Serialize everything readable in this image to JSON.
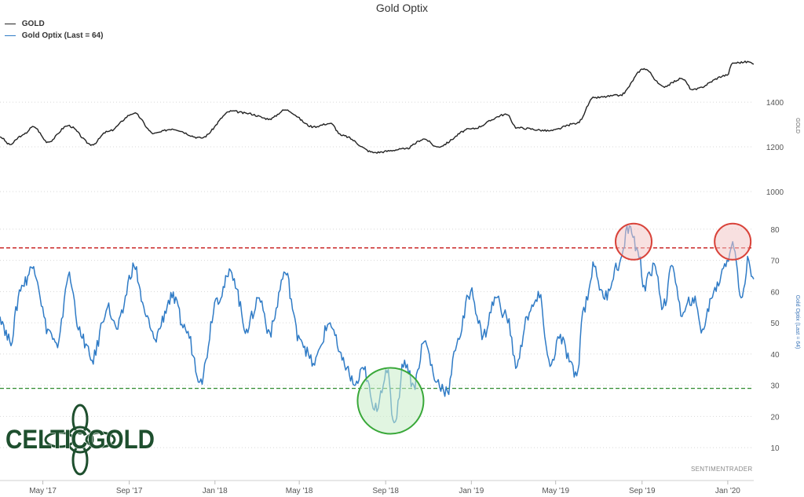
{
  "chart_data": {
    "type": "line",
    "title": "Gold Optix",
    "legend": [
      "GOLD",
      "Gold Optix (Last = 64)"
    ],
    "legend_placement": "top-left",
    "x_tick_labels": [
      "May '17",
      "Sep '17",
      "Jan '18",
      "May '18",
      "Sep '18",
      "Jan '19",
      "May '19",
      "Sep '19",
      "Jan '20"
    ],
    "x_tick_positions": [
      "2017-05-01",
      "2017-09-01",
      "2018-01-01",
      "2018-05-01",
      "2018-09-01",
      "2019-01-01",
      "2019-05-01",
      "2019-09-01",
      "2020-01-01"
    ],
    "x_range": [
      "2017-03-01",
      "2020-02-07"
    ],
    "series": [
      {
        "name": "GOLD",
        "axis": "GOLD",
        "color": "#222222",
        "points": [
          [
            "2017-03-01",
            1245
          ],
          [
            "2017-03-15",
            1210
          ],
          [
            "2017-04-01",
            1250
          ],
          [
            "2017-04-18",
            1290
          ],
          [
            "2017-05-08",
            1222
          ],
          [
            "2017-06-06",
            1295
          ],
          [
            "2017-07-10",
            1210
          ],
          [
            "2017-08-01",
            1268
          ],
          [
            "2017-09-08",
            1350
          ],
          [
            "2017-10-06",
            1260
          ],
          [
            "2017-11-01",
            1280
          ],
          [
            "2017-12-12",
            1240
          ],
          [
            "2018-01-25",
            1360
          ],
          [
            "2018-02-15",
            1350
          ],
          [
            "2018-03-20",
            1325
          ],
          [
            "2018-04-11",
            1365
          ],
          [
            "2018-05-21",
            1290
          ],
          [
            "2018-06-14",
            1305
          ],
          [
            "2018-07-01",
            1250
          ],
          [
            "2018-08-16",
            1175
          ],
          [
            "2018-09-28",
            1190
          ],
          [
            "2018-10-26",
            1235
          ],
          [
            "2018-11-13",
            1200
          ],
          [
            "2018-12-31",
            1280
          ],
          [
            "2019-02-20",
            1345
          ],
          [
            "2019-03-07",
            1285
          ],
          [
            "2019-04-23",
            1272
          ],
          [
            "2019-05-31",
            1305
          ],
          [
            "2019-06-25",
            1420
          ],
          [
            "2019-07-31",
            1430
          ],
          [
            "2019-09-04",
            1550
          ],
          [
            "2019-10-01",
            1470
          ],
          [
            "2019-10-28",
            1505
          ],
          [
            "2019-11-12",
            1455
          ],
          [
            "2019-12-31",
            1520
          ],
          [
            "2020-01-08",
            1575
          ],
          [
            "2020-01-31",
            1580
          ],
          [
            "2020-02-07",
            1570
          ]
        ]
      },
      {
        "name": "Gold Optix (Last = 64)",
        "axis": "Gold Optix (Last = 64)",
        "color": "#2f7bc6",
        "points": [
          [
            "2017-03-01",
            52
          ],
          [
            "2017-03-15",
            44
          ],
          [
            "2017-04-01",
            62
          ],
          [
            "2017-04-18",
            68
          ],
          [
            "2017-05-08",
            48
          ],
          [
            "2017-05-22",
            42
          ],
          [
            "2017-06-06",
            65
          ],
          [
            "2017-06-26",
            45
          ],
          [
            "2017-07-10",
            38
          ],
          [
            "2017-08-01",
            55
          ],
          [
            "2017-08-14",
            48
          ],
          [
            "2017-09-08",
            68
          ],
          [
            "2017-09-25",
            52
          ],
          [
            "2017-10-06",
            45
          ],
          [
            "2017-11-01",
            58
          ],
          [
            "2017-11-20",
            48
          ],
          [
            "2017-12-12",
            32
          ],
          [
            "2018-01-04",
            58
          ],
          [
            "2018-01-25",
            66
          ],
          [
            "2018-02-15",
            48
          ],
          [
            "2018-03-05",
            58
          ],
          [
            "2018-03-20",
            47
          ],
          [
            "2018-04-11",
            66
          ],
          [
            "2018-04-30",
            46
          ],
          [
            "2018-05-21",
            37
          ],
          [
            "2018-06-14",
            50
          ],
          [
            "2018-07-01",
            38
          ],
          [
            "2018-07-20",
            30
          ],
          [
            "2018-08-01",
            35
          ],
          [
            "2018-08-16",
            22
          ],
          [
            "2018-09-03",
            34
          ],
          [
            "2018-09-13",
            18
          ],
          [
            "2018-09-28",
            38
          ],
          [
            "2018-10-11",
            30
          ],
          [
            "2018-10-26",
            44
          ],
          [
            "2018-11-13",
            31
          ],
          [
            "2018-11-28",
            28
          ],
          [
            "2018-12-13",
            45
          ],
          [
            "2018-12-31",
            60
          ],
          [
            "2019-01-18",
            46
          ],
          [
            "2019-02-05",
            58
          ],
          [
            "2019-02-20",
            52
          ],
          [
            "2019-03-07",
            36
          ],
          [
            "2019-03-21",
            52
          ],
          [
            "2019-04-08",
            58
          ],
          [
            "2019-04-23",
            36
          ],
          [
            "2019-05-06",
            45
          ],
          [
            "2019-05-31",
            33
          ],
          [
            "2019-06-10",
            55
          ],
          [
            "2019-06-25",
            68
          ],
          [
            "2019-07-08",
            58
          ],
          [
            "2019-07-31",
            69
          ],
          [
            "2019-08-14",
            81
          ],
          [
            "2019-08-26",
            73
          ],
          [
            "2019-09-04",
            62
          ],
          [
            "2019-09-20",
            68
          ],
          [
            "2019-10-01",
            55
          ],
          [
            "2019-10-15",
            68
          ],
          [
            "2019-10-28",
            52
          ],
          [
            "2019-11-12",
            58
          ],
          [
            "2019-11-26",
            48
          ],
          [
            "2019-12-12",
            60
          ],
          [
            "2019-12-31",
            70
          ],
          [
            "2020-01-08",
            76
          ],
          [
            "2020-01-20",
            58
          ],
          [
            "2020-01-31",
            70
          ],
          [
            "2020-02-07",
            64
          ]
        ]
      }
    ],
    "y_axes": [
      {
        "label": "GOLD",
        "ticks": [
          1000,
          1200,
          1400
        ],
        "range": [
          965,
          1625
        ],
        "position": "right"
      },
      {
        "label": "Gold Optix (Last = 64)",
        "ticks": [
          10,
          20,
          30,
          40,
          50,
          60,
          70,
          80
        ],
        "range": [
          5,
          85
        ],
        "position": "right"
      }
    ],
    "reference_lines": [
      {
        "axis": "Gold Optix (Last = 64)",
        "value": 74,
        "style": "dashed",
        "color": "#c00000"
      },
      {
        "axis": "Gold Optix (Last = 64)",
        "value": 29,
        "style": "dashed",
        "color": "#2e8b2e"
      }
    ],
    "highlights": [
      {
        "axis": "Gold Optix (Last = 64)",
        "date": "2019-08-20",
        "value": 76,
        "color": "#d9433a",
        "fill": "#f2c6c6",
        "meaning": "overbought"
      },
      {
        "axis": "Gold Optix (Last = 64)",
        "date": "2020-01-08",
        "value": 76,
        "color": "#d9433a",
        "fill": "#f2c6c6",
        "meaning": "overbought"
      },
      {
        "axis": "Gold Optix (Last = 64)",
        "date": "2018-09-08",
        "value": 25,
        "color": "#39a839",
        "fill": "#c9ecc9",
        "meaning": "oversold"
      }
    ],
    "grid": "horizontal-dotted"
  },
  "logo": {
    "text": "CELTICGOLD",
    "color": "#1e4f2e"
  },
  "credit": "SENTIMENTRADER",
  "colors": {
    "gold_line": "#222222",
    "optix_line": "#2f7bc6",
    "overbought": "#c00000",
    "oversold": "#2e8b2e"
  }
}
